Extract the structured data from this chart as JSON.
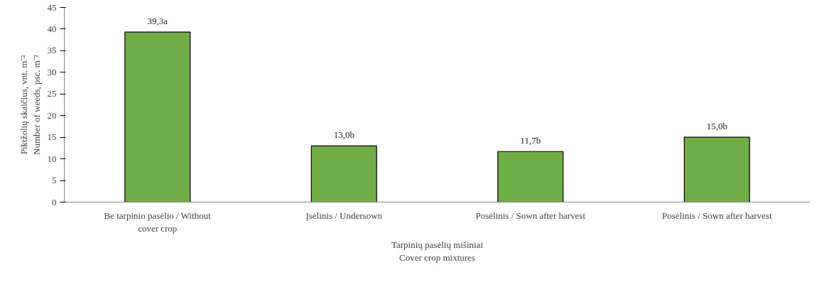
{
  "chart_data": {
    "type": "bar",
    "categories": [
      "Be tarpinio pasėlio / Without cover crop",
      "Įsėlinis / Undersown",
      "Posėlinis / Sown after harvest",
      "Posėlinis / Sown after harvest"
    ],
    "values": [
      39.3,
      13.0,
      11.7,
      15.0
    ],
    "value_labels": [
      "39,3a",
      "13,0b",
      "11,7b",
      "15,0b"
    ],
    "color": "#70ad47",
    "ylim": [
      0,
      45
    ],
    "yticks": [
      0,
      5,
      10,
      15,
      20,
      25,
      30,
      35,
      40,
      45
    ],
    "xlabel": "Tarpinių pasėlių mišiniai\nCover crop mixtures",
    "ylabel": "Piktžolių skaičius, vnt. m⁻²\nNumber of weeds, psc. m⁻²",
    "grid": false
  }
}
